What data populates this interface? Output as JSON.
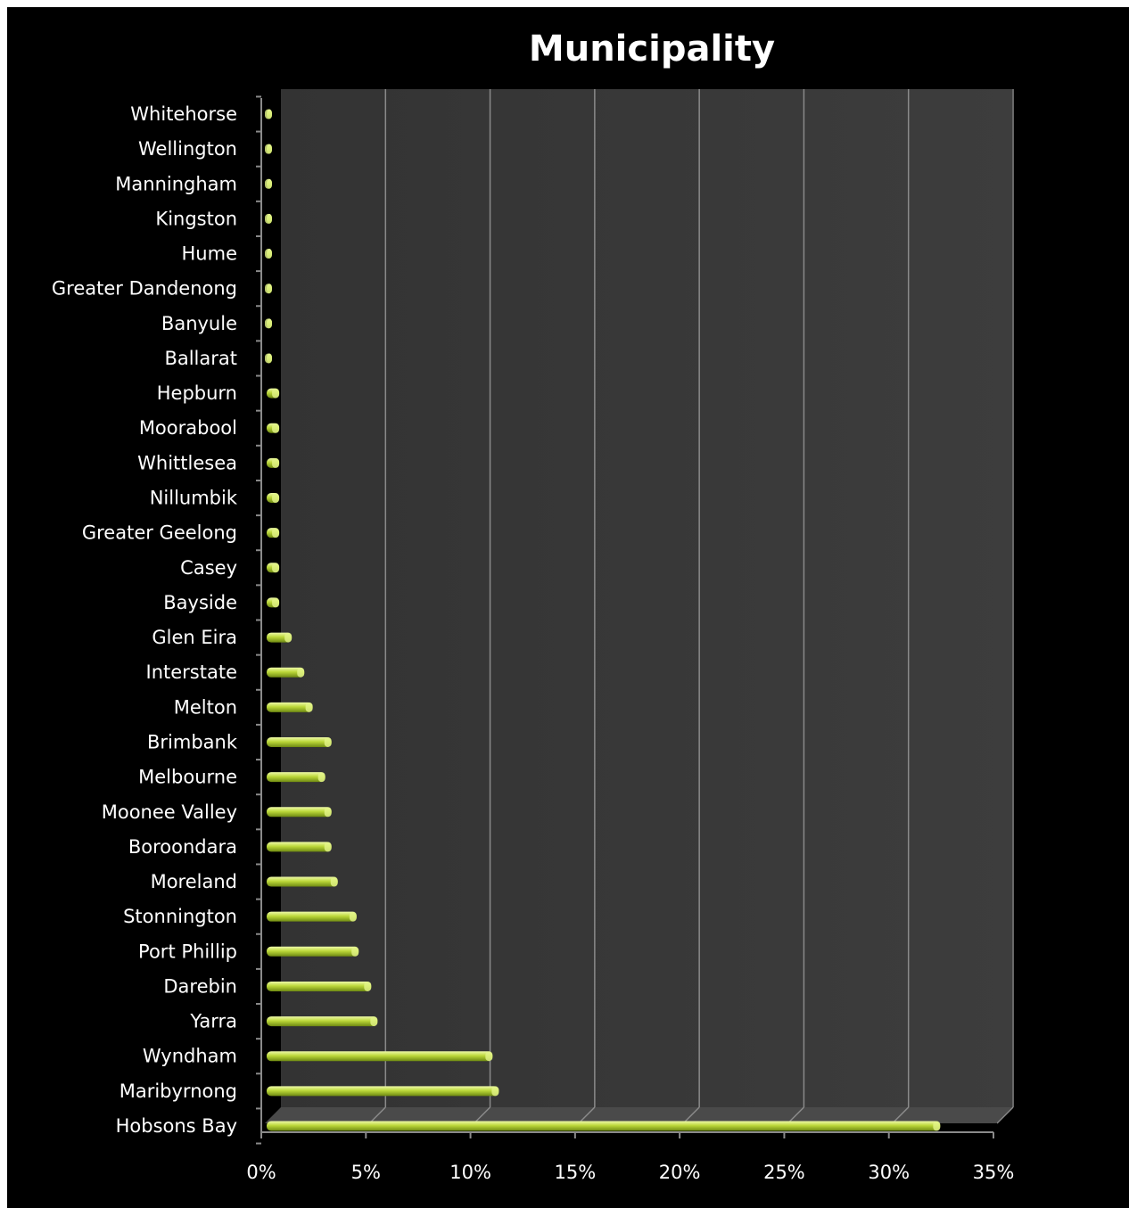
{
  "chart_data": {
    "type": "bar",
    "orientation": "horizontal",
    "title": "Municipality",
    "categories": [
      "Whitehorse",
      "Wellington",
      "Manningham",
      "Kingston",
      "Hume",
      "Greater Dandenong",
      "Banyule",
      "Ballarat",
      "Hepburn",
      "Moorabool",
      "Whittlesea",
      "Nillumbik",
      "Greater Geelong",
      "Casey",
      "Bayside",
      "Glen Eira",
      "Interstate",
      "Melton",
      "Brimbank",
      "Melbourne",
      "Moonee Valley",
      "Boroondara",
      "Moreland",
      "Stonnington",
      "Port Phillip",
      "Darebin",
      "Yarra",
      "Wyndham",
      "Maribyrnong",
      "Hobsons Bay"
    ],
    "values": [
      0.2,
      0.2,
      0.2,
      0.2,
      0.2,
      0.2,
      0.2,
      0.2,
      0.6,
      0.6,
      0.6,
      0.6,
      0.6,
      0.6,
      0.6,
      1.2,
      1.8,
      2.2,
      3.1,
      2.8,
      3.1,
      3.1,
      3.4,
      4.3,
      4.4,
      5.0,
      5.3,
      10.8,
      11.1,
      32.2
    ],
    "xlim": [
      0,
      35
    ],
    "xticks": [
      "0%",
      "5%",
      "10%",
      "15%",
      "20%",
      "25%",
      "30%",
      "35%"
    ],
    "value_unit": "%",
    "grid": true,
    "colors": {
      "background": "#000000",
      "plot_area": "#3a3a3a",
      "bar": "#b5d334",
      "bar_highlight": "#e4f58a",
      "gridline": "#8a8a8a",
      "text": "#ffffff"
    }
  }
}
